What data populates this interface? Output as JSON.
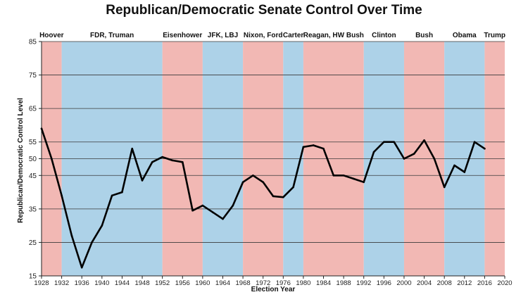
{
  "chart_data": {
    "type": "line",
    "title": "Republican/Democratic Senate Control Over Time",
    "xlabel": "Election Year",
    "ylabel": "Republican/Democratic Control Level",
    "xlim": [
      1928,
      2020
    ],
    "ylim": [
      15,
      85
    ],
    "x_ticks": [
      1928,
      1932,
      1936,
      1940,
      1944,
      1948,
      1952,
      1956,
      1960,
      1964,
      1968,
      1972,
      1976,
      1980,
      1984,
      1988,
      1992,
      1996,
      2000,
      2004,
      2008,
      2012,
      2016,
      2020
    ],
    "y_ticks": [
      15,
      25,
      35,
      45,
      50,
      55,
      65,
      75,
      85
    ],
    "grid": "horizontal",
    "line_color": "#000000",
    "party_colors": {
      "R": "#f2b8b4",
      "D": "#add2e8"
    },
    "eras": [
      {
        "label": "Hoover",
        "start": 1928,
        "end": 1932,
        "party": "R"
      },
      {
        "label": "FDR, Truman",
        "start": 1932,
        "end": 1952,
        "party": "D"
      },
      {
        "label": "Eisenhower",
        "start": 1952,
        "end": 1960,
        "party": "R"
      },
      {
        "label": "JFK, LBJ",
        "start": 1960,
        "end": 1968,
        "party": "D"
      },
      {
        "label": "Nixon, Ford",
        "start": 1968,
        "end": 1976,
        "party": "R"
      },
      {
        "label": "Carter",
        "start": 1976,
        "end": 1980,
        "party": "D"
      },
      {
        "label": "Reagan, HW Bush",
        "start": 1980,
        "end": 1992,
        "party": "R"
      },
      {
        "label": "Clinton",
        "start": 1992,
        "end": 2000,
        "party": "D"
      },
      {
        "label": "Bush",
        "start": 2000,
        "end": 2008,
        "party": "R"
      },
      {
        "label": "Obama",
        "start": 2008,
        "end": 2016,
        "party": "D"
      },
      {
        "label": "Trump",
        "start": 2016,
        "end": 2020,
        "party": "R"
      }
    ],
    "series": [
      {
        "points": [
          [
            1928,
            59
          ],
          [
            1930,
            50
          ],
          [
            1932,
            39
          ],
          [
            1934,
            27
          ],
          [
            1936,
            17.5
          ],
          [
            1938,
            25
          ],
          [
            1940,
            30
          ],
          [
            1942,
            39
          ],
          [
            1944,
            40
          ],
          [
            1946,
            53
          ],
          [
            1948,
            43.5
          ],
          [
            1950,
            49
          ],
          [
            1952,
            50.5
          ],
          [
            1954,
            49.5
          ],
          [
            1956,
            49
          ],
          [
            1958,
            34.5
          ],
          [
            1960,
            36
          ],
          [
            1962,
            34
          ],
          [
            1964,
            32
          ],
          [
            1966,
            36
          ],
          [
            1968,
            43
          ],
          [
            1970,
            45
          ],
          [
            1972,
            43
          ],
          [
            1974,
            38.8
          ],
          [
            1976,
            38.5
          ],
          [
            1978,
            41.5
          ],
          [
            1980,
            53.5
          ],
          [
            1982,
            54
          ],
          [
            1984,
            53
          ],
          [
            1986,
            45
          ],
          [
            1988,
            45
          ],
          [
            1990,
            44
          ],
          [
            1992,
            43
          ],
          [
            1994,
            52
          ],
          [
            1996,
            55
          ],
          [
            1998,
            55
          ],
          [
            2000,
            50
          ],
          [
            2002,
            51.5
          ],
          [
            2004,
            55.5
          ],
          [
            2006,
            50
          ],
          [
            2008,
            41.5
          ],
          [
            2010,
            48
          ],
          [
            2012,
            46
          ],
          [
            2014,
            55
          ],
          [
            2016,
            53
          ]
        ]
      }
    ]
  }
}
